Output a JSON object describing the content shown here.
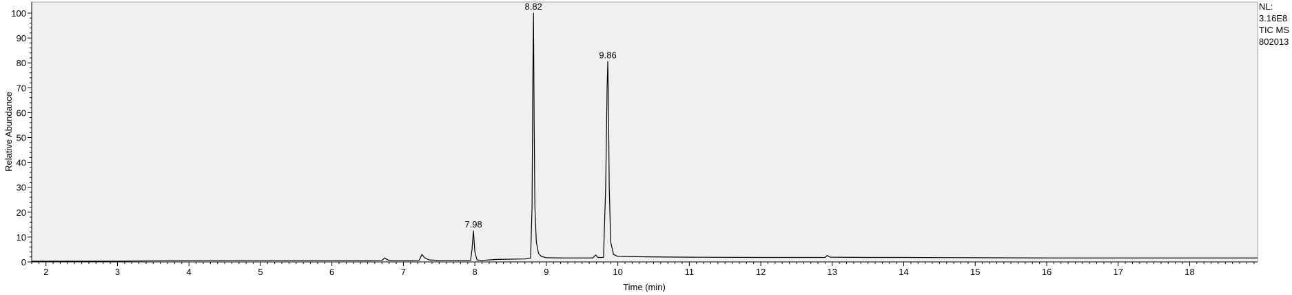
{
  "chart_data": {
    "type": "line",
    "xlabel": "Time (min)",
    "ylabel": "Relative Abundance",
    "xlim": [
      1.8,
      18.95
    ],
    "ylim": [
      0,
      100
    ],
    "x_ticks": [
      2,
      3,
      4,
      5,
      6,
      7,
      8,
      9,
      10,
      11,
      12,
      13,
      14,
      15,
      16,
      17,
      18
    ],
    "y_ticks": [
      0,
      10,
      20,
      30,
      40,
      50,
      60,
      70,
      80,
      90,
      100
    ],
    "grid": false,
    "info_box": [
      "NL:",
      "3.16E8",
      "TIC  MS",
      "802013"
    ],
    "peak_labels": [
      {
        "text": "7.98",
        "x": 7.98,
        "y": 12.5
      },
      {
        "text": "8.82",
        "x": 8.82,
        "y": 100
      },
      {
        "text": "9.86",
        "x": 9.86,
        "y": 80.5
      }
    ],
    "series": [
      {
        "line_color": "#000000",
        "points": [
          [
            1.8,
            0.3
          ],
          [
            2.0,
            0.3
          ],
          [
            3.0,
            0.3
          ],
          [
            3.4,
            0.4
          ],
          [
            4.0,
            0.5
          ],
          [
            5.0,
            0.5
          ],
          [
            6.0,
            0.5
          ],
          [
            6.7,
            0.6
          ],
          [
            6.74,
            1.6
          ],
          [
            6.78,
            0.8
          ],
          [
            6.85,
            0.5
          ],
          [
            7.22,
            0.6
          ],
          [
            7.26,
            3.0
          ],
          [
            7.3,
            1.6
          ],
          [
            7.36,
            0.8
          ],
          [
            7.5,
            0.6
          ],
          [
            7.94,
            0.6
          ],
          [
            7.96,
            5.0
          ],
          [
            7.98,
            12.5
          ],
          [
            8.0,
            4.0
          ],
          [
            8.03,
            0.8
          ],
          [
            8.1,
            0.6
          ],
          [
            8.3,
            1.0
          ],
          [
            8.7,
            1.2
          ],
          [
            8.78,
            1.5
          ],
          [
            8.8,
            22.0
          ],
          [
            8.81,
            70.0
          ],
          [
            8.82,
            100.0
          ],
          [
            8.83,
            55.0
          ],
          [
            8.84,
            22.0
          ],
          [
            8.86,
            8.0
          ],
          [
            8.89,
            3.5
          ],
          [
            8.93,
            2.2
          ],
          [
            9.0,
            1.7
          ],
          [
            9.2,
            1.6
          ],
          [
            9.65,
            1.6
          ],
          [
            9.69,
            2.8
          ],
          [
            9.72,
            1.8
          ],
          [
            9.8,
            1.8
          ],
          [
            9.83,
            30.0
          ],
          [
            9.85,
            70.0
          ],
          [
            9.86,
            80.5
          ],
          [
            9.87,
            60.0
          ],
          [
            9.88,
            30.0
          ],
          [
            9.9,
            8.0
          ],
          [
            9.94,
            3.0
          ],
          [
            10.0,
            2.2
          ],
          [
            10.5,
            2.0
          ],
          [
            11.0,
            1.9
          ],
          [
            12.0,
            1.8
          ],
          [
            12.9,
            1.8
          ],
          [
            12.93,
            2.6
          ],
          [
            12.97,
            1.9
          ],
          [
            13.5,
            1.8
          ],
          [
            14.0,
            1.8
          ],
          [
            15.0,
            1.7
          ],
          [
            16.0,
            1.6
          ],
          [
            17.0,
            1.6
          ],
          [
            18.0,
            1.6
          ],
          [
            18.95,
            1.6
          ]
        ]
      }
    ]
  }
}
